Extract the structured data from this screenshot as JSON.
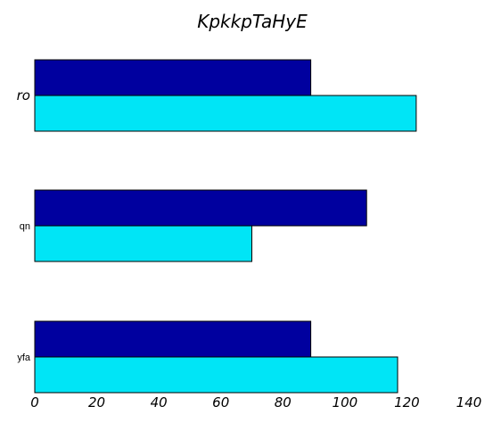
{
  "chart_data": {
    "type": "bar",
    "orientation": "horizontal",
    "title": "KpkkpTaHyE",
    "xlabel": "",
    "ylabel": "",
    "categories": [
      "ro",
      "qn",
      "yfa"
    ],
    "series": [
      {
        "color": "#00009f",
        "values": [
          89,
          107,
          89
        ]
      },
      {
        "color": "#00e5f6",
        "values": [
          123,
          70,
          117
        ]
      }
    ],
    "xlim": [
      0,
      140
    ],
    "xticks": [
      "0",
      "20",
      "40",
      "60",
      "80",
      "100",
      "120",
      "140"
    ],
    "grid": false,
    "legend": "none"
  }
}
